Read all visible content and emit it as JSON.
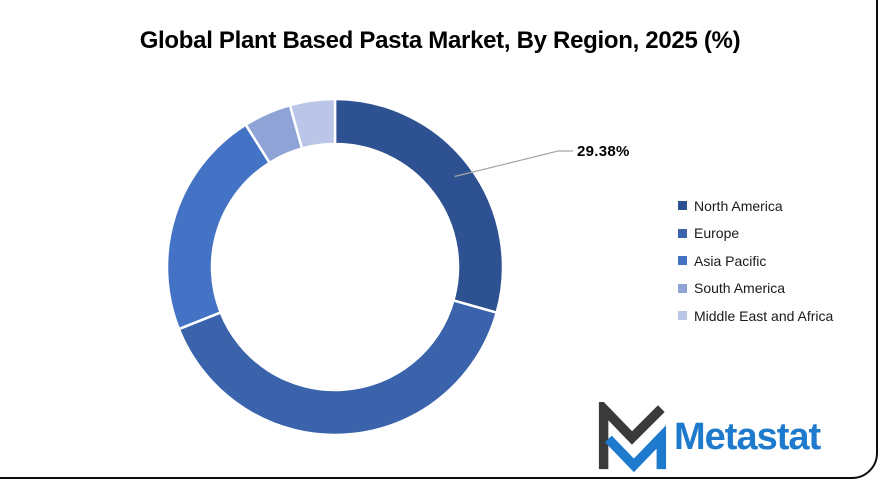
{
  "title": "Global Plant Based Pasta Market, By Region, 2025 (%)",
  "callout": {
    "label": "29.38%"
  },
  "chart_data": {
    "type": "donut",
    "title": "Global Plant Based Pasta Market, By Region, 2025 (%)",
    "categories": [
      "North America",
      "Europe",
      "Asia Pacific",
      "South America",
      "Middle East and Africa"
    ],
    "values": [
      29.38,
      39.6,
      22.1,
      4.6,
      4.32
    ],
    "colors": [
      "#2E5191",
      "#3A63AC",
      "#4472C4",
      "#8FA3D7",
      "#BAC5E7"
    ],
    "labeled_slice": {
      "category": "North America",
      "label": "29.38%"
    },
    "start_angle_deg": 0,
    "direction": "clockwise",
    "hole_ratio": 0.73,
    "legend_position": "right",
    "slice_separator_color": "#FFFFFF",
    "leader_line_color": "#A6A6A6"
  },
  "legend_title": "",
  "logo": {
    "text": "Metastat",
    "accent_color": "#1D7ACD",
    "dark_color": "#3A3A3A"
  }
}
